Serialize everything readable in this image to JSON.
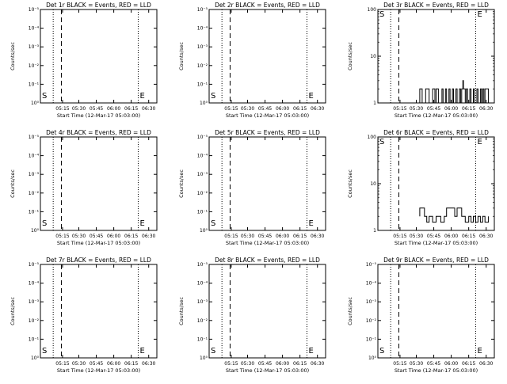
{
  "chart_data": [
    {
      "type": "line",
      "title": "Det 1r BLACK = Events, RED = LLD",
      "xlabel": "Start Time (12-Mar-17 05:03:00)",
      "ylabel": "Counts/sec",
      "scale": "small",
      "x_ticks": [
        "05:15",
        "05:30",
        "05:45",
        "06:00",
        "06:15",
        "06:30"
      ],
      "y_ticks": [
        "10⁰",
        "10⁻¹",
        "10⁻²",
        "10⁻³",
        "10⁻⁴",
        "10⁻⁵"
      ],
      "series": [],
      "start_marker": "S",
      "end_marker": "E"
    },
    {
      "type": "line",
      "title": "Det 2r BLACK = Events, RED = LLD",
      "xlabel": "Start Time (12-Mar-17 05:03:00)",
      "ylabel": "Counts/sec",
      "scale": "small",
      "x_ticks": [
        "05:15",
        "05:30",
        "05:45",
        "06:00",
        "06:15",
        "06:30"
      ],
      "y_ticks": [
        "10⁰",
        "10⁻¹",
        "10⁻²",
        "10⁻³",
        "10⁻⁴",
        "10⁻⁵"
      ],
      "series": [],
      "start_marker": "S",
      "end_marker": "E"
    },
    {
      "type": "line",
      "title": "Det 3r BLACK = Events, RED = LLD",
      "xlabel": "Start Time (12-Mar-17 05:03:00)",
      "ylabel": "Counts/sec",
      "scale": "large",
      "x_ticks": [
        "05:15",
        "05:30",
        "05:45",
        "06:00",
        "06:15",
        "06:30"
      ],
      "y_ticks": [
        "1",
        "10",
        "100"
      ],
      "series": [
        {
          "color": "#000000",
          "values": [
            [
              0.36,
              1
            ],
            [
              0.36,
              2
            ],
            [
              0.38,
              2
            ],
            [
              0.38,
              1
            ],
            [
              0.41,
              1
            ],
            [
              0.41,
              2
            ],
            [
              0.44,
              2
            ],
            [
              0.44,
              1
            ],
            [
              0.47,
              1
            ],
            [
              0.47,
              2
            ],
            [
              0.49,
              2
            ],
            [
              0.49,
              1
            ],
            [
              0.5,
              1
            ],
            [
              0.5,
              2
            ],
            [
              0.52,
              2
            ],
            [
              0.52,
              1
            ],
            [
              0.55,
              1
            ],
            [
              0.55,
              2
            ],
            [
              0.56,
              2
            ],
            [
              0.56,
              1
            ],
            [
              0.58,
              1
            ],
            [
              0.58,
              2
            ],
            [
              0.59,
              2
            ],
            [
              0.59,
              1
            ],
            [
              0.61,
              1
            ],
            [
              0.61,
              2
            ],
            [
              0.62,
              2
            ],
            [
              0.62,
              1
            ],
            [
              0.64,
              1
            ],
            [
              0.64,
              2
            ],
            [
              0.65,
              2
            ],
            [
              0.65,
              1
            ],
            [
              0.67,
              1
            ],
            [
              0.67,
              2
            ],
            [
              0.68,
              2
            ],
            [
              0.68,
              1
            ],
            [
              0.7,
              1
            ],
            [
              0.7,
              2
            ],
            [
              0.71,
              2
            ],
            [
              0.71,
              1
            ],
            [
              0.72,
              1
            ],
            [
              0.72,
              2
            ],
            [
              0.73,
              2
            ],
            [
              0.73,
              3
            ],
            [
              0.735,
              3
            ],
            [
              0.735,
              2
            ],
            [
              0.75,
              2
            ],
            [
              0.75,
              1
            ],
            [
              0.76,
              1
            ],
            [
              0.76,
              2
            ],
            [
              0.77,
              2
            ],
            [
              0.77,
              1
            ],
            [
              0.79,
              1
            ],
            [
              0.79,
              2
            ],
            [
              0.8,
              2
            ],
            [
              0.8,
              1
            ],
            [
              0.82,
              1
            ],
            [
              0.82,
              2
            ],
            [
              0.83,
              2
            ],
            [
              0.83,
              1
            ],
            [
              0.85,
              1
            ],
            [
              0.85,
              2
            ],
            [
              0.86,
              2
            ],
            [
              0.86,
              1
            ],
            [
              0.88,
              1
            ],
            [
              0.88,
              2
            ],
            [
              0.89,
              2
            ],
            [
              0.89,
              1
            ],
            [
              0.9,
              1
            ],
            [
              0.9,
              2
            ],
            [
              0.91,
              2
            ],
            [
              0.91,
              1
            ],
            [
              0.92,
              1
            ],
            [
              0.92,
              2
            ],
            [
              0.95,
              2
            ],
            [
              0.95,
              1
            ]
          ]
        }
      ],
      "start_marker": "S",
      "end_marker": "E"
    },
    {
      "type": "line",
      "title": "Det 4r BLACK = Events, RED = LLD",
      "xlabel": "Start Time (12-Mar-17 05:03:00)",
      "ylabel": "Counts/sec",
      "scale": "small",
      "x_ticks": [
        "05:15",
        "05:30",
        "05:45",
        "06:00",
        "06:15",
        "06:30"
      ],
      "y_ticks": [
        "10⁰",
        "10⁻¹",
        "10⁻²",
        "10⁻³",
        "10⁻⁴",
        "10⁻⁵"
      ],
      "series": [],
      "start_marker": "S",
      "end_marker": "E"
    },
    {
      "type": "line",
      "title": "Det 5r BLACK = Events, RED = LLD",
      "xlabel": "Start Time (12-Mar-17 05:03:00)",
      "ylabel": "Counts/sec",
      "scale": "small",
      "x_ticks": [
        "05:15",
        "05:30",
        "05:45",
        "06:00",
        "06:15",
        "06:30"
      ],
      "y_ticks": [
        "10⁰",
        "10⁻¹",
        "10⁻²",
        "10⁻³",
        "10⁻⁴",
        "10⁻⁵"
      ],
      "series": [],
      "start_marker": "S",
      "end_marker": "E"
    },
    {
      "type": "line",
      "title": "Det 6r BLACK = Events, RED = LLD",
      "xlabel": "Start Time (12-Mar-17 05:03:00)",
      "ylabel": "Counts/sec",
      "scale": "large",
      "x_ticks": [
        "05:15",
        "05:30",
        "05:45",
        "06:00",
        "06:15",
        "06:30"
      ],
      "y_ticks": [
        "1",
        "10",
        "100"
      ],
      "series": [
        {
          "color": "#000000",
          "values": [
            [
              0.36,
              2
            ],
            [
              0.36,
              3
            ],
            [
              0.4,
              3
            ],
            [
              0.4,
              2
            ],
            [
              0.42,
              2
            ],
            [
              0.42,
              1.5
            ],
            [
              0.44,
              1.5
            ],
            [
              0.44,
              2
            ],
            [
              0.47,
              2
            ],
            [
              0.47,
              1.5
            ],
            [
              0.5,
              1.5
            ],
            [
              0.5,
              2
            ],
            [
              0.54,
              2
            ],
            [
              0.54,
              1.5
            ],
            [
              0.57,
              1.5
            ],
            [
              0.57,
              2
            ],
            [
              0.59,
              2
            ],
            [
              0.59,
              3
            ],
            [
              0.66,
              3
            ],
            [
              0.66,
              2
            ],
            [
              0.68,
              2
            ],
            [
              0.68,
              3
            ],
            [
              0.72,
              3
            ],
            [
              0.72,
              2
            ],
            [
              0.75,
              2
            ],
            [
              0.75,
              1.5
            ],
            [
              0.78,
              1.5
            ],
            [
              0.78,
              2
            ],
            [
              0.8,
              2
            ],
            [
              0.8,
              1.5
            ],
            [
              0.82,
              1.5
            ],
            [
              0.82,
              2
            ],
            [
              0.84,
              2
            ],
            [
              0.84,
              1.5
            ],
            [
              0.86,
              1.5
            ],
            [
              0.86,
              2
            ],
            [
              0.88,
              2
            ],
            [
              0.88,
              1.5
            ],
            [
              0.9,
              1.5
            ],
            [
              0.9,
              2
            ],
            [
              0.92,
              2
            ],
            [
              0.92,
              1.5
            ],
            [
              0.95,
              1.5
            ],
            [
              0.95,
              2
            ]
          ]
        }
      ],
      "start_marker": "S",
      "end_marker": "E"
    },
    {
      "type": "line",
      "title": "Det 7r BLACK = Events, RED = LLD",
      "xlabel": "Start Time (12-Mar-17 05:03:00)",
      "ylabel": "Counts/sec",
      "scale": "small",
      "x_ticks": [
        "05:15",
        "05:30",
        "05:45",
        "06:00",
        "06:15",
        "06:30"
      ],
      "y_ticks": [
        "10⁰",
        "10⁻¹",
        "10⁻²",
        "10⁻³",
        "10⁻⁴",
        "10⁻⁵"
      ],
      "series": [],
      "start_marker": "S",
      "end_marker": "E"
    },
    {
      "type": "line",
      "title": "Det 8r BLACK = Events, RED = LLD",
      "xlabel": "Start Time (12-Mar-17 05:03:00)",
      "ylabel": "Counts/sec",
      "scale": "small",
      "x_ticks": [
        "05:15",
        "05:30",
        "05:45",
        "06:00",
        "06:15",
        "06:30"
      ],
      "y_ticks": [
        "10⁰",
        "10⁻¹",
        "10⁻²",
        "10⁻³",
        "10⁻⁴",
        "10⁻⁵"
      ],
      "series": [],
      "start_marker": "S",
      "end_marker": "E"
    },
    {
      "type": "line",
      "title": "Det 9r BLACK = Events, RED = LLD",
      "xlabel": "Start Time (12-Mar-17 05:03:00)",
      "ylabel": "Counts/sec",
      "scale": "small",
      "x_ticks": [
        "05:15",
        "05:30",
        "05:45",
        "06:00",
        "06:15",
        "06:30"
      ],
      "y_ticks": [
        "10⁰",
        "10⁻¹",
        "10⁻²",
        "10⁻³",
        "10⁻⁴",
        "10⁻⁵"
      ],
      "series": [],
      "start_marker": "S",
      "end_marker": "E"
    }
  ]
}
